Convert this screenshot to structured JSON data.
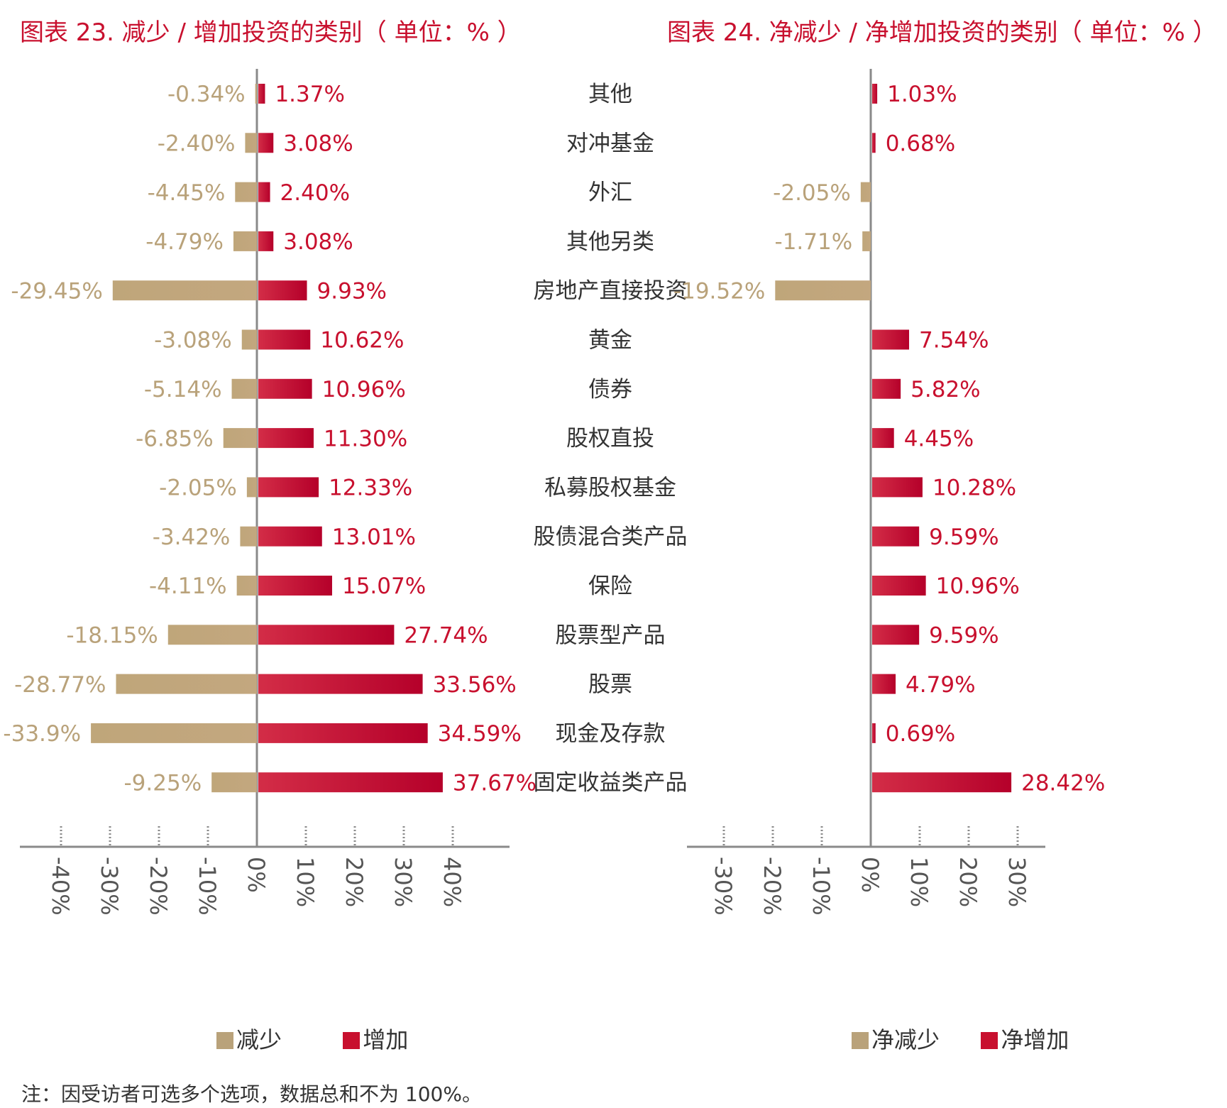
{
  "chart_data": [
    {
      "type": "bar",
      "title": "图表 23. 减少 / 增加投资的类别（ 单位：% ）",
      "categories": [
        "其他",
        "对冲基金",
        "外汇",
        "其他另类",
        "房地产直接投资",
        "黄金",
        "债券",
        "股权直投",
        "私募股权基金",
        "股债混合类产品",
        "保险",
        "股票型产品",
        "股票",
        "现金及存款",
        "固定收益类产品"
      ],
      "series": [
        {
          "name": "减少",
          "values": [
            -0.34,
            -2.4,
            -4.45,
            -4.79,
            -29.45,
            -3.08,
            -5.14,
            -6.85,
            -2.05,
            -3.42,
            -4.11,
            -18.15,
            -28.77,
            -33.9,
            -9.25
          ],
          "labels": [
            "-0.34%",
            "-2.40%",
            "-4.45%",
            "-4.79%",
            "-29.45%",
            "-3.08%",
            "-5.14%",
            "-6.85%",
            "-2.05%",
            "-3.42%",
            "-4.11%",
            "-18.15%",
            "-28.77%",
            "-33.9%",
            "-9.25%"
          ]
        },
        {
          "name": "增加",
          "values": [
            1.37,
            3.08,
            2.4,
            3.08,
            9.93,
            10.62,
            10.96,
            11.3,
            12.33,
            13.01,
            15.07,
            27.74,
            33.56,
            34.59,
            37.67
          ],
          "labels": [
            "1.37%",
            "3.08%",
            "2.40%",
            "3.08%",
            "9.93%",
            "10.62%",
            "10.96%",
            "11.30%",
            "12.33%",
            "13.01%",
            "15.07%",
            "27.74%",
            "33.56%",
            "34.59%",
            "37.67%"
          ]
        }
      ],
      "xlim": [
        -40,
        40
      ],
      "ticks": [
        -40,
        -30,
        -20,
        -10,
        0,
        10,
        20,
        30,
        40
      ],
      "tick_labels": [
        "-40%",
        "-30%",
        "-20%",
        "-10%",
        "0%",
        "10%",
        "20%",
        "30%",
        "40%"
      ],
      "legend": "bottom"
    },
    {
      "type": "bar",
      "title": "图表 24. 净减少 / 净增加投资的类别（ 单位：% ）",
      "categories": [
        "其他",
        "对冲基金",
        "外汇",
        "其他另类",
        "房地产直接投资",
        "黄金",
        "债券",
        "股权直投",
        "私募股权基金",
        "股债混合类产品",
        "保险",
        "股票型产品",
        "股票",
        "现金及存款",
        "固定收益类产品"
      ],
      "series": [
        {
          "name": "净增加",
          "values": [
            1.03,
            0.68,
            -2.05,
            -1.71,
            -19.52,
            7.54,
            5.82,
            4.45,
            10.28,
            9.59,
            10.96,
            9.59,
            4.79,
            0.69,
            28.42
          ],
          "labels": [
            "1.03%",
            "0.68%",
            "-2.05%",
            "-1.71%",
            "-19.52%",
            "7.54%",
            "5.82%",
            "4.45%",
            "10.28%",
            "9.59%",
            "10.96%",
            "9.59%",
            "4.79%",
            "0.69%",
            "28.42%"
          ]
        }
      ],
      "xlim": [
        -30,
        30
      ],
      "ticks": [
        -30,
        -20,
        -10,
        0,
        10,
        20,
        30
      ],
      "tick_labels": [
        "-30%",
        "-20%",
        "-10%",
        "0%",
        "10%",
        "20%",
        "30%"
      ],
      "legend": "bottom"
    }
  ],
  "legend_left": [
    {
      "label": "减少",
      "color": "#b9a27a"
    },
    {
      "label": "增加",
      "color": "#c8102e"
    }
  ],
  "legend_right": [
    {
      "label": "净减少",
      "color": "#b9a27a"
    },
    {
      "label": "净增加",
      "color": "#c8102e"
    }
  ],
  "colors": {
    "negative": "#b9a27a",
    "positive": "#c8102e",
    "axis": "#8a8a8a",
    "title": "#c8102e",
    "category_text": "#333333"
  },
  "note": "注：因受访者可选多个选项，数据总和不为 100%。"
}
